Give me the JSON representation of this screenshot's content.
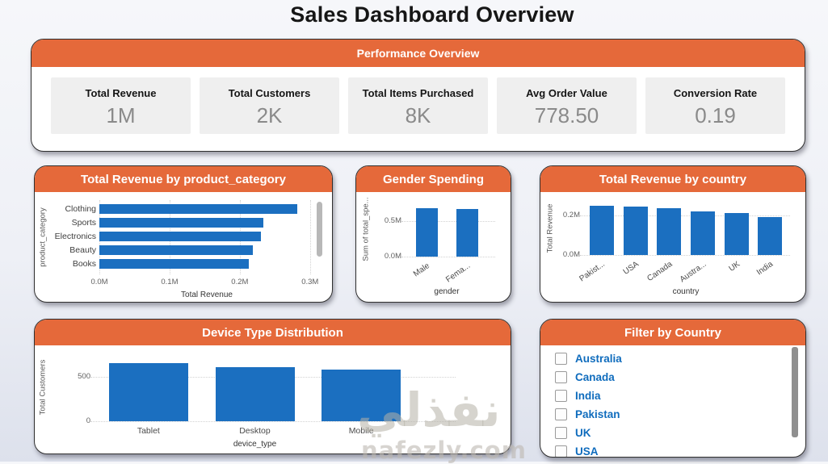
{
  "page_title": "Sales Dashboard Overview",
  "colors": {
    "accent_orange": "#E5693A",
    "bar_blue": "#1B6FC0",
    "filter_label_blue": "#0F6CBD",
    "kpi_value_gray": "#8A8A8A"
  },
  "performance": {
    "title": "Performance Overview",
    "kpis": [
      {
        "label": "Total Revenue",
        "value": "1M"
      },
      {
        "label": "Total Customers",
        "value": "2K"
      },
      {
        "label": "Total Items Purchased",
        "value": "8K"
      },
      {
        "label": "Avg Order Value",
        "value": "778.50"
      },
      {
        "label": "Conversion Rate",
        "value": "0.19"
      }
    ]
  },
  "chart_data": [
    {
      "id": "revenue_by_category",
      "type": "bar",
      "orientation": "horizontal",
      "title": "Total Revenue by product_category",
      "categories": [
        "Clothing",
        "Sports",
        "Electronics",
        "Beauty",
        "Books"
      ],
      "values": [
        0.282,
        0.234,
        0.23,
        0.219,
        0.213
      ],
      "unit": "M",
      "xlabel": "Total Revenue",
      "ylabel": "product_category",
      "xlim": [
        0,
        0.306
      ],
      "xticks": [
        "0.0M",
        "0.1M",
        "0.2M",
        "0.3M"
      ],
      "xtick_values": [
        0,
        0.1,
        0.2,
        0.3
      ],
      "grid": true,
      "legend": "none"
    },
    {
      "id": "gender_spending",
      "type": "bar",
      "orientation": "vertical",
      "title": "Gender Spending",
      "categories": [
        "Male",
        "Fema..."
      ],
      "values": [
        0.69,
        0.68
      ],
      "unit": "M",
      "xlabel": "gender",
      "ylabel": "Sum of total_spe...",
      "ylim": [
        0,
        0.78
      ],
      "yticks": [
        "0.0M",
        "0.5M"
      ],
      "ytick_values": [
        0,
        0.5
      ],
      "grid": true,
      "legend": "none"
    },
    {
      "id": "revenue_by_country",
      "type": "bar",
      "orientation": "vertical",
      "title": "Total Revenue by country",
      "categories": [
        "Pakist...",
        "USA",
        "Canada",
        "Austra...",
        "UK",
        "India"
      ],
      "values": [
        0.25,
        0.247,
        0.238,
        0.222,
        0.213,
        0.192
      ],
      "unit": "M",
      "xlabel": "country",
      "ylabel": "Total Revenue",
      "ylim": [
        0,
        0.27
      ],
      "yticks": [
        "0.0M",
        "0.2M"
      ],
      "ytick_values": [
        0,
        0.2
      ],
      "grid": true,
      "legend": "none"
    },
    {
      "id": "device_type",
      "type": "bar",
      "orientation": "vertical",
      "title": "Device Type Distribution",
      "categories": [
        "Tablet",
        "Desktop",
        "Mobile"
      ],
      "values": [
        650,
        610,
        575
      ],
      "xlabel": "device_type",
      "ylabel": "Total Customers",
      "ylim": [
        0,
        760
      ],
      "yticks": [
        "0",
        "500"
      ],
      "ytick_values": [
        0,
        500
      ],
      "grid": true,
      "legend": "none"
    }
  ],
  "filter": {
    "title": "Filter by Country",
    "options": [
      {
        "label": "Australia",
        "checked": false
      },
      {
        "label": "Canada",
        "checked": false
      },
      {
        "label": "India",
        "checked": false
      },
      {
        "label": "Pakistan",
        "checked": false
      },
      {
        "label": "UK",
        "checked": false
      },
      {
        "label": "USA",
        "checked": false
      }
    ]
  },
  "watermark": {
    "arabic": "نفذلي",
    "domain": "nafezly.com"
  }
}
